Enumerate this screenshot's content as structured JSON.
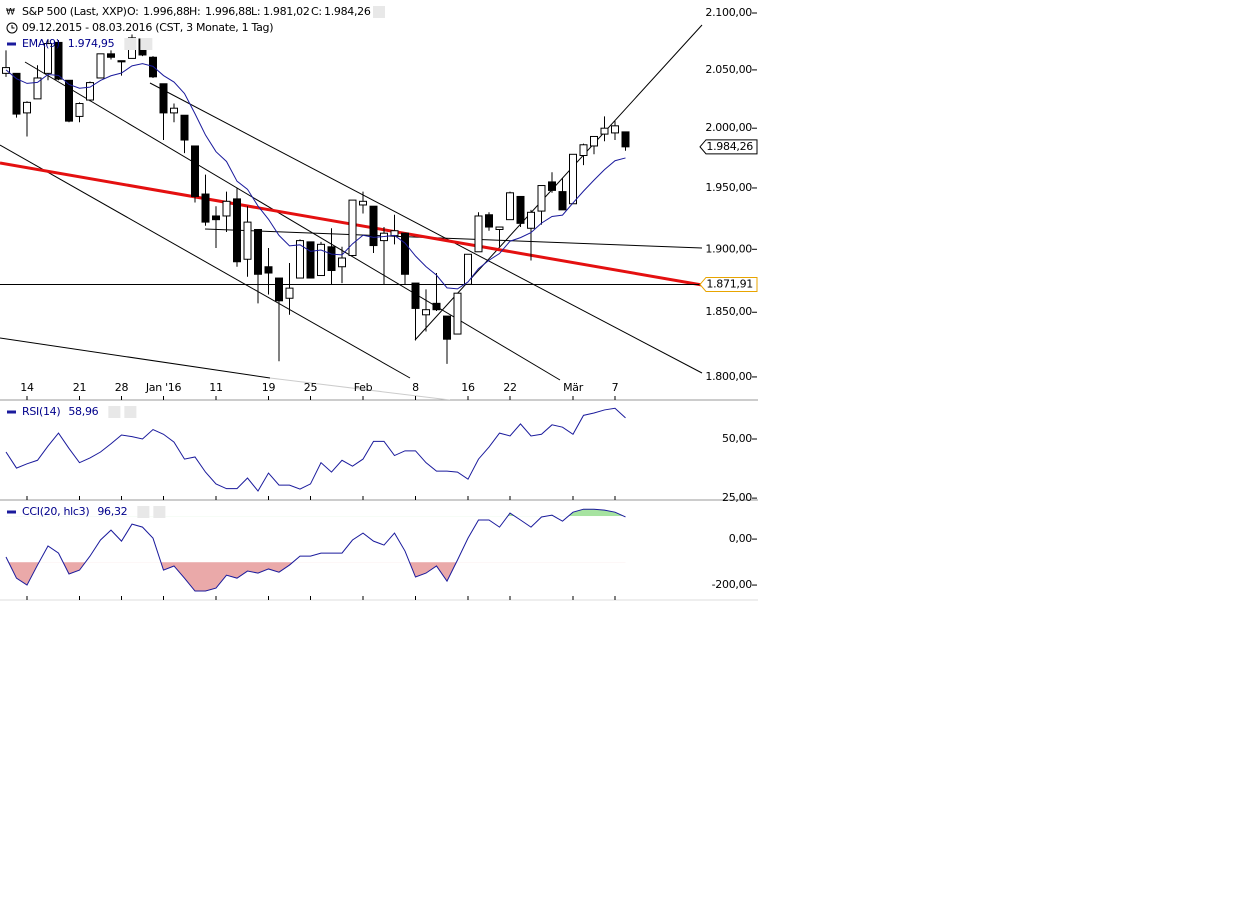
{
  "chart_data": [
    {
      "type": "candlestick",
      "title": "S&P 500 (Last, XXP)",
      "subtitle": "09.12.2015 - 08.03.2016 (CST, 3 Monate, 1 Tag)",
      "header_values": [
        {
          "name": "O:",
          "value": 1996.88,
          "label": "1.996,88"
        },
        {
          "name": "H:",
          "value": 1996.88,
          "label": "1.996,88"
        },
        {
          "name": "L:",
          "value": 1981.02,
          "label": "1.981,02"
        },
        {
          "name": "C:",
          "value": 1984.26,
          "label": "1.984,26"
        }
      ],
      "log": true,
      "ylim": [
        1782.5,
        2111.6
      ],
      "yticks": [
        {
          "value": 1800,
          "label": "1.800,00"
        },
        {
          "value": 1850,
          "label": "1.850,00"
        },
        {
          "value": 1900,
          "label": "1.900,00"
        },
        {
          "value": 1950,
          "label": "1.950,00"
        },
        {
          "value": 2000,
          "label": "2.000,00"
        },
        {
          "value": 2050,
          "label": "2.050,00"
        },
        {
          "value": 2100,
          "label": "2.100,00"
        }
      ],
      "categories": [
        null,
        null,
        "14",
        null,
        null,
        null,
        null,
        "21",
        null,
        null,
        null,
        "28",
        null,
        null,
        null,
        "Jan '16",
        null,
        null,
        null,
        null,
        "11",
        null,
        null,
        null,
        null,
        "19",
        null,
        null,
        null,
        "25",
        null,
        null,
        null,
        null,
        "Feb",
        null,
        null,
        null,
        null,
        "8",
        null,
        null,
        null,
        null,
        "16",
        null,
        null,
        null,
        "22",
        null,
        null,
        null,
        null,
        null,
        "Mär",
        null,
        null,
        null,
        "7",
        null
      ],
      "open": [
        2047,
        2047,
        2013,
        2025,
        2047,
        2074,
        2041,
        2010,
        2024,
        2043,
        2064,
        2058,
        2060,
        2077,
        2061,
        2038,
        2013,
        2011,
        1985,
        1945,
        1927,
        1927,
        1941,
        1892,
        1916,
        1886,
        1877,
        1861,
        1877,
        1906,
        1879,
        1902,
        1886,
        1895,
        1936,
        1935,
        1907,
        1911,
        1913,
        1873,
        1848,
        1857,
        1847,
        1833,
        1872,
        1898,
        1928,
        1916,
        1924,
        1943,
        1917,
        1931,
        1955,
        1947,
        1937,
        1977,
        1985,
        1995,
        1996,
        1996.88
      ],
      "high": [
        2067,
        2047,
        2023,
        2054,
        2077,
        2076,
        2041,
        2022,
        2040,
        2064,
        2067,
        2058,
        2081,
        2077,
        2062,
        2038,
        2021,
        2011,
        1985,
        1961,
        1935,
        1947,
        1950,
        1935,
        1916,
        1901,
        1877,
        1889,
        1908,
        1906,
        1906,
        1917,
        1902,
        1940,
        1947,
        1935,
        1918,
        1928,
        1913,
        1873,
        1868,
        1881,
        1847,
        1865,
        1896,
        1930,
        1930,
        1918,
        1947,
        1943,
        1932,
        1952,
        1963,
        1958,
        1978,
        1987,
        1993,
        2010,
        2006,
        1996.88
      ],
      "low": [
        2044,
        2009,
        1993,
        2025,
        2041,
        2041,
        2005,
        2005,
        2023,
        2043,
        2059,
        2045,
        2060,
        2062,
        2043,
        1990,
        2005,
        1979,
        1938,
        1919,
        1901,
        1914,
        1886,
        1878,
        1857,
        1864,
        1812,
        1848,
        1877,
        1877,
        1879,
        1872,
        1873,
        1895,
        1929,
        1897,
        1872,
        1904,
        1872,
        1828,
        1835,
        1851,
        1810,
        1833,
        1872,
        1898,
        1915,
        1902,
        1924,
        1918,
        1891,
        1920,
        1946,
        1932,
        1937,
        1969,
        1978,
        1989,
        1990,
        1981.02
      ],
      "close": [
        2052,
        2012,
        2022,
        2043,
        2073,
        2042,
        2006,
        2021,
        2039,
        2064,
        2061,
        2057,
        2078,
        2063,
        2044,
        2013,
        2017,
        1990,
        1943,
        1922,
        1924,
        1939,
        1890,
        1922,
        1880,
        1881,
        1859,
        1869,
        1907,
        1877,
        1904,
        1883,
        1893,
        1940,
        1939,
        1903,
        1913,
        1915,
        1880,
        1853,
        1852,
        1852,
        1829,
        1865,
        1896,
        1927,
        1918,
        1918,
        1946,
        1921,
        1930,
        1952,
        1948,
        1932,
        1978,
        1986,
        1993,
        2000,
        2002,
        1984.26
      ],
      "up_color": "#ffffff",
      "down_color": "#000000",
      "series": [
        {
          "name": "EMA(9)",
          "color": "#1a1a9c",
          "last_label": "1.974,95",
          "values": [
            2050,
            2042.4,
            2038.3,
            2039.2,
            2046,
            2045.2,
            2037.4,
            2034.1,
            2035.1,
            2040.9,
            2044.9,
            2047.3,
            2053.5,
            2055.4,
            2053.1,
            2045.1,
            2039.5,
            2029.6,
            2012.3,
            1994.2,
            1980.2,
            1972,
            1955.6,
            1948.9,
            1935.1,
            1924.3,
            1911.2,
            1902.8,
            1903.6,
            1898.3,
            1899.4,
            1896.1,
            1895.5,
            1904.4,
            1911.3,
            1909.6,
            1910.3,
            1911.2,
            1905,
            1894.6,
            1886.1,
            1879.3,
            1869.2,
            1868.4,
            1873.9,
            1884.5,
            1891.2,
            1896.6,
            1906.5,
            1909.4,
            1913.5,
            1921.2,
            1926.6,
            1927.7,
            1937.7,
            1947.4,
            1956.5,
            1965.2,
            1972.6,
            1974.95
          ]
        }
      ],
      "price_marker": {
        "value": 1984.26,
        "label": "1.984,26"
      },
      "horizontal_line": {
        "value": 1871.91,
        "label": "1.871,91",
        "color": "#e8a400"
      }
    },
    {
      "type": "line",
      "ylim": [
        24.2,
        66.5
      ],
      "yticks": [
        {
          "value": 25,
          "label": "25,00"
        },
        {
          "value": 50,
          "label": "50,00"
        }
      ],
      "series": [
        {
          "name": "RSI(14)",
          "color": "#1a1a9c",
          "last_label": "58,96",
          "values": [
            44.5,
            37.7,
            39.5,
            41,
            47,
            52.5,
            46,
            40,
            42,
            44.5,
            48,
            51.7,
            51,
            50,
            54,
            52,
            48.7,
            41.5,
            42.4,
            36,
            31,
            29,
            29,
            33.5,
            28,
            35.6,
            30.5,
            30.5,
            28.8,
            31,
            40,
            36,
            41,
            38.5,
            41.5,
            49,
            49,
            43,
            45,
            45,
            40,
            36.4,
            36.4,
            36,
            33,
            41.5,
            46.6,
            52.5,
            51.3,
            56.4,
            51.3,
            52,
            56,
            55,
            52,
            60,
            61,
            62.3,
            63,
            58.96
          ]
        }
      ]
    },
    {
      "type": "line",
      "ylim": [
        -265,
        170
      ],
      "yticks": [
        {
          "value": -200,
          "label": "-200,00"
        },
        {
          "value": 0,
          "label": "0,00"
        }
      ],
      "oversold": -100,
      "overbought": 100,
      "oversold_color": "#eaa9a9",
      "overbought_color": "#a6e3a0",
      "series": [
        {
          "name": "CCI(20, hlc3)",
          "color": "#1a1a9c",
          "last_label": "96,32",
          "values": [
            -78,
            -170,
            -200,
            -113,
            -30,
            -61,
            -152,
            -135,
            -74,
            -4,
            39,
            -9,
            65,
            52,
            4,
            -135,
            -117,
            -170,
            -226,
            -226,
            -213,
            -157,
            -170,
            -139,
            -148,
            -130,
            -144,
            -113,
            -74,
            -74,
            -61,
            -61,
            -61,
            -4,
            26,
            -9,
            -26,
            26,
            -52,
            -165,
            -148,
            -117,
            -183,
            -91,
            4,
            83,
            83,
            52,
            113,
            83,
            52,
            96,
            104,
            78,
            117,
            130,
            130,
            126,
            117,
            96.32
          ]
        }
      ]
    }
  ]
}
